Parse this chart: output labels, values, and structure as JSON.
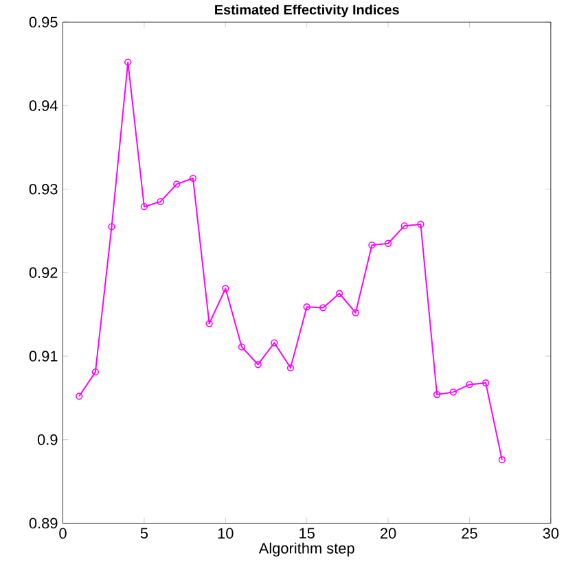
{
  "chart_data": {
    "type": "line",
    "title": "Estimated Effectivity Indices",
    "xlabel": "Algorithm step",
    "x": [
      1,
      2,
      3,
      4,
      5,
      6,
      7,
      8,
      9,
      10,
      11,
      12,
      13,
      14,
      15,
      16,
      17,
      18,
      19,
      20,
      21,
      22,
      23,
      24,
      25,
      26,
      27
    ],
    "series": [
      {
        "color": "#ff00ff",
        "values": [
          0.9052,
          0.9081,
          0.9255,
          0.9452,
          0.9279,
          0.9285,
          0.9306,
          0.9313,
          0.9139,
          0.9181,
          0.9111,
          0.909,
          0.9116,
          0.9086,
          0.9159,
          0.9158,
          0.9175,
          0.9152,
          0.9233,
          0.9235,
          0.9256,
          0.9258,
          0.9054,
          0.9057,
          0.9066,
          0.9068,
          0.8976
        ]
      }
    ],
    "xlim": [
      0,
      30
    ],
    "xticks": [
      0,
      5,
      10,
      15,
      20,
      25,
      30
    ],
    "ylim": [
      0.89,
      0.95
    ],
    "yticks": [
      0.89,
      0.9,
      0.91,
      0.92,
      0.93,
      0.94,
      0.95
    ],
    "marker": "circle",
    "line_style": "solid"
  }
}
